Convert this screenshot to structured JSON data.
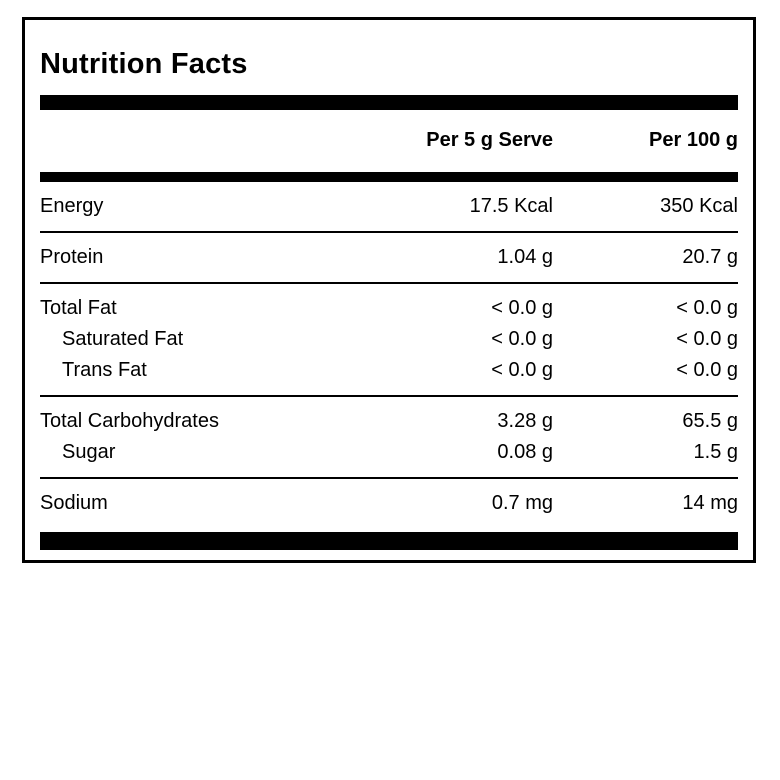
{
  "title": "Nutrition Facts",
  "columns": [
    "Per 5 g Serve",
    "Per 100 g"
  ],
  "sections": [
    {
      "name": "energy",
      "rows": [
        {
          "label": "Energy",
          "per_serve": "17.5 Kcal",
          "per_100g": "350 Kcal"
        }
      ]
    },
    {
      "name": "protein",
      "rows": [
        {
          "label": "Protein",
          "per_serve": "1.04 g",
          "per_100g": "20.7 g"
        }
      ]
    },
    {
      "name": "fat",
      "rows": [
        {
          "label": "Total Fat",
          "per_serve": "< 0.0 g",
          "per_100g": "< 0.0 g"
        },
        {
          "label": "Saturated Fat",
          "per_serve": "< 0.0 g",
          "per_100g": "< 0.0 g",
          "indent": true
        },
        {
          "label": "Trans Fat",
          "per_serve": "< 0.0 g",
          "per_100g": "< 0.0 g",
          "indent": true
        }
      ]
    },
    {
      "name": "carbohydrates",
      "rows": [
        {
          "label": "Total Carbohydrates",
          "per_serve": "3.28 g",
          "per_100g": "65.5 g"
        },
        {
          "label": "Sugar",
          "per_serve": "0.08 g",
          "per_100g": "1.5 g",
          "indent": true
        }
      ]
    },
    {
      "name": "sodium",
      "rows": [
        {
          "label": "Sodium",
          "per_serve": "0.7 mg",
          "per_100g": "14 mg"
        }
      ]
    }
  ],
  "colors": {
    "text": "#000000",
    "background": "#ffffff",
    "divider": "#000000"
  }
}
